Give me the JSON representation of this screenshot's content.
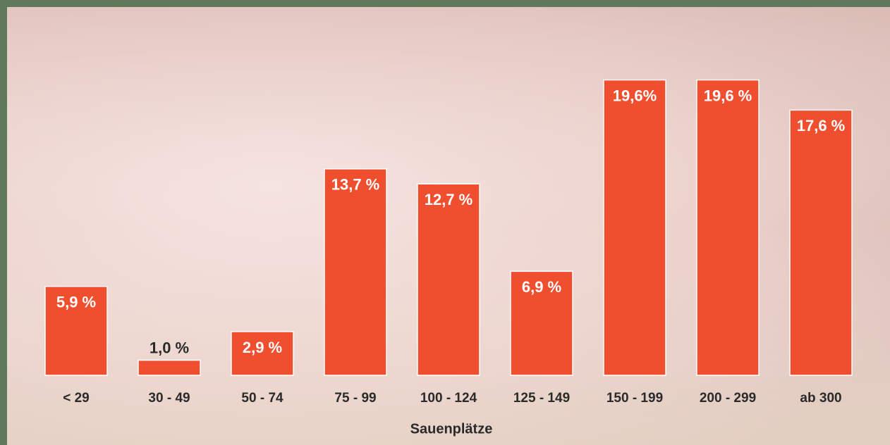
{
  "chart_data": {
    "type": "bar",
    "categories": [
      "< 29",
      "30 - 49",
      "50 - 74",
      "75 - 99",
      "100 - 124",
      "125 - 149",
      "150 - 199",
      "200 - 299",
      "ab 300"
    ],
    "values": [
      5.9,
      1.0,
      2.9,
      13.7,
      12.7,
      6.9,
      19.6,
      19.6,
      17.6
    ],
    "value_labels": [
      "5,9 %",
      "1,0 %",
      "2,9 %",
      "13,7 %",
      "12,7 %",
      "6,9 %",
      "19,6%",
      "19,6 %",
      "17,6 %"
    ],
    "color": "#f04f2f",
    "xlabel": "Sauenplätze"
  }
}
